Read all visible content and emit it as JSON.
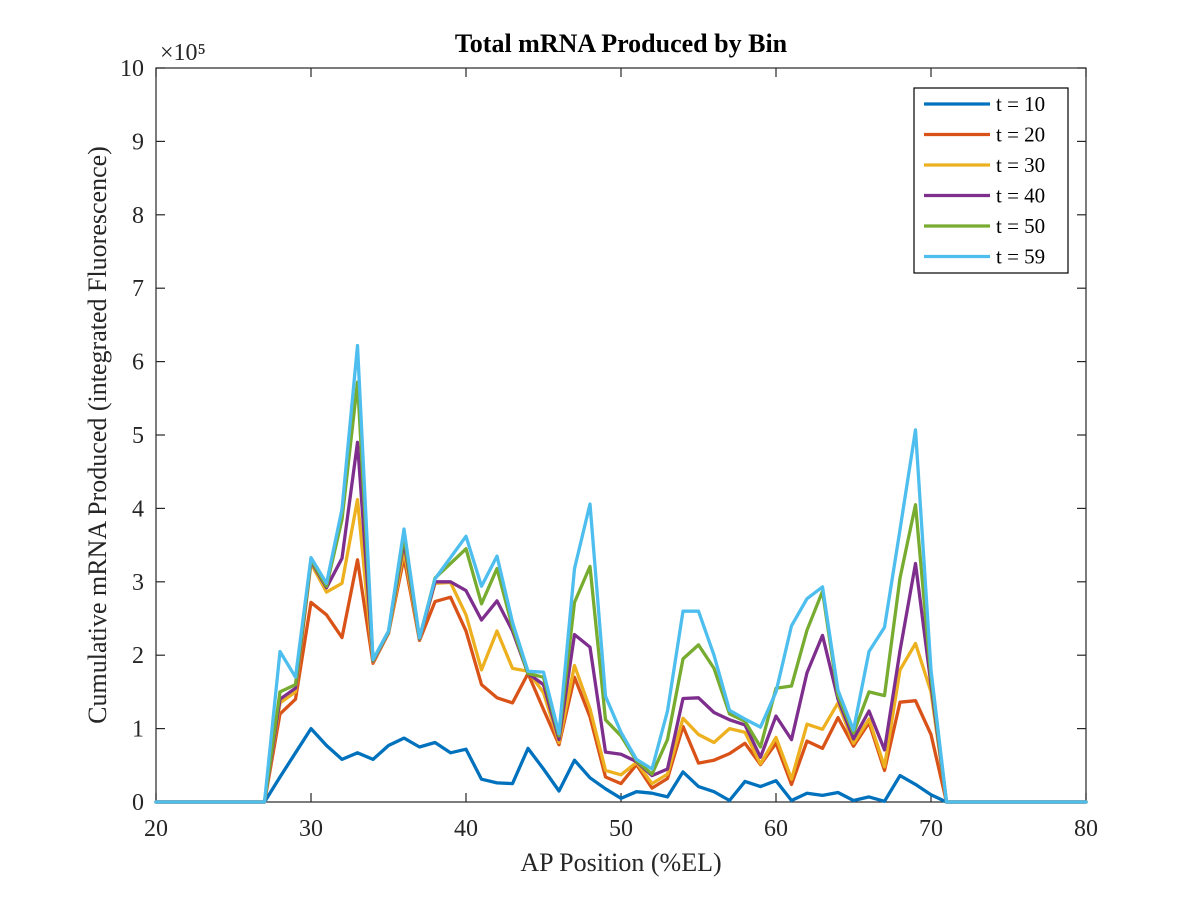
{
  "chart_data": {
    "type": "line",
    "title": "Total mRNA Produced by Bin",
    "xlabel": "AP Position (%EL)",
    "ylabel": "Cumulative mRNA Produced (integrated Fluorescence)",
    "y_exponent_label": "×10⁵",
    "xlim": [
      20,
      80
    ],
    "ylim": [
      0,
      10
    ],
    "x_ticks": [
      "20",
      "30",
      "40",
      "50",
      "60",
      "70",
      "80"
    ],
    "y_ticks": [
      "0",
      "1",
      "2",
      "3",
      "4",
      "5",
      "6",
      "7",
      "8",
      "9",
      "10"
    ],
    "grid": false,
    "legend_position": "top-right",
    "x": [
      20,
      21,
      22,
      23,
      24,
      25,
      26,
      27,
      28,
      29,
      30,
      31,
      32,
      33,
      34,
      35,
      36,
      37,
      38,
      39,
      40,
      41,
      42,
      43,
      44,
      45,
      46,
      47,
      48,
      49,
      50,
      51,
      52,
      53,
      54,
      55,
      56,
      57,
      58,
      59,
      60,
      61,
      62,
      63,
      64,
      65,
      66,
      67,
      68,
      69,
      70,
      71,
      72,
      73,
      74,
      75,
      76,
      77,
      78,
      79,
      80
    ],
    "series": [
      {
        "name": "t = 10",
        "color": "#0072BD",
        "values": [
          0,
          0,
          0,
          0,
          0,
          0,
          0,
          0,
          0.34,
          0.67,
          1.0,
          0.77,
          0.58,
          0.67,
          0.58,
          0.77,
          0.87,
          0.75,
          0.81,
          0.67,
          0.72,
          0.31,
          0.26,
          0.25,
          0.73,
          0.45,
          0.15,
          0.57,
          0.33,
          0.18,
          0.05,
          0.14,
          0.12,
          0.07,
          0.41,
          0.21,
          0.14,
          0.02,
          0.28,
          0.21,
          0.29,
          0.02,
          0.12,
          0.09,
          0.13,
          0.02,
          0.07,
          0.01,
          0.36,
          0.24,
          0.1,
          0,
          0,
          0,
          0,
          0,
          0,
          0,
          0,
          0,
          0
        ]
      },
      {
        "name": "t = 20",
        "color": "#D95319",
        "values": [
          0,
          0,
          0,
          0,
          0,
          0,
          0,
          0,
          1.2,
          1.4,
          2.72,
          2.55,
          2.24,
          3.3,
          1.89,
          2.3,
          3.33,
          2.2,
          2.73,
          2.79,
          2.33,
          1.6,
          1.42,
          1.35,
          1.75,
          1.26,
          0.78,
          1.7,
          1.16,
          0.34,
          0.25,
          0.51,
          0.19,
          0.32,
          1.03,
          0.53,
          0.57,
          0.66,
          0.8,
          0.51,
          0.8,
          0.24,
          0.83,
          0.73,
          1.15,
          0.76,
          1.08,
          0.43,
          1.36,
          1.38,
          0.92,
          0,
          0,
          0,
          0,
          0,
          0,
          0,
          0,
          0,
          0
        ]
      },
      {
        "name": "t = 30",
        "color": "#EDB120",
        "values": [
          0,
          0,
          0,
          0,
          0,
          0,
          0,
          0,
          1.35,
          1.5,
          3.25,
          2.86,
          2.98,
          4.12,
          1.91,
          2.3,
          3.43,
          2.21,
          2.98,
          2.99,
          2.55,
          1.8,
          2.33,
          1.82,
          1.78,
          1.49,
          0.81,
          1.86,
          1.27,
          0.43,
          0.37,
          0.54,
          0.25,
          0.38,
          1.14,
          0.92,
          0.81,
          1.0,
          0.95,
          0.52,
          0.88,
          0.31,
          1.06,
          0.99,
          1.35,
          0.8,
          1.13,
          0.48,
          1.8,
          2.16,
          1.5,
          0,
          0,
          0,
          0,
          0,
          0,
          0,
          0,
          0,
          0
        ]
      },
      {
        "name": "t = 40",
        "color": "#7E2F8E",
        "values": [
          0,
          0,
          0,
          0,
          0,
          0,
          0,
          0,
          1.4,
          1.55,
          3.28,
          2.92,
          3.32,
          4.9,
          1.92,
          2.31,
          3.55,
          2.22,
          3.0,
          3.0,
          2.88,
          2.48,
          2.74,
          2.33,
          1.75,
          1.6,
          0.85,
          2.28,
          2.11,
          0.68,
          0.65,
          0.55,
          0.36,
          0.45,
          1.41,
          1.42,
          1.22,
          1.12,
          1.05,
          0.61,
          1.17,
          0.85,
          1.76,
          2.27,
          1.4,
          0.86,
          1.24,
          0.71,
          2.06,
          3.25,
          1.6,
          0,
          0,
          0,
          0,
          0,
          0,
          0,
          0,
          0,
          0
        ]
      },
      {
        "name": "t = 50",
        "color": "#77AC30",
        "values": [
          0,
          0,
          0,
          0,
          0,
          0,
          0,
          0,
          1.5,
          1.6,
          3.3,
          2.94,
          3.85,
          5.72,
          1.93,
          2.32,
          3.62,
          2.23,
          3.05,
          3.25,
          3.45,
          2.7,
          3.18,
          2.38,
          1.75,
          1.7,
          0.9,
          2.72,
          3.21,
          1.12,
          0.9,
          0.56,
          0.38,
          0.85,
          1.95,
          2.14,
          1.82,
          1.2,
          1.1,
          0.75,
          1.55,
          1.58,
          2.34,
          2.87,
          1.45,
          0.94,
          1.5,
          1.45,
          3.05,
          4.05,
          1.7,
          0,
          0,
          0,
          0,
          0,
          0,
          0,
          0,
          0,
          0
        ]
      },
      {
        "name": "t = 59",
        "color": "#4DBEEE",
        "values": [
          0,
          0,
          0,
          0,
          0,
          0,
          0,
          0,
          2.05,
          1.7,
          3.33,
          2.98,
          3.99,
          6.22,
          1.94,
          2.33,
          3.72,
          2.24,
          3.04,
          3.33,
          3.62,
          2.94,
          3.35,
          2.45,
          1.78,
          1.77,
          0.93,
          3.18,
          4.06,
          1.44,
          0.95,
          0.58,
          0.45,
          1.24,
          2.6,
          2.6,
          2.0,
          1.25,
          1.13,
          1.02,
          1.5,
          2.4,
          2.77,
          2.93,
          1.52,
          0.98,
          2.05,
          2.38,
          3.71,
          5.07,
          1.8,
          0,
          0,
          0,
          0,
          0,
          0,
          0,
          0,
          0,
          0
        ]
      }
    ]
  }
}
